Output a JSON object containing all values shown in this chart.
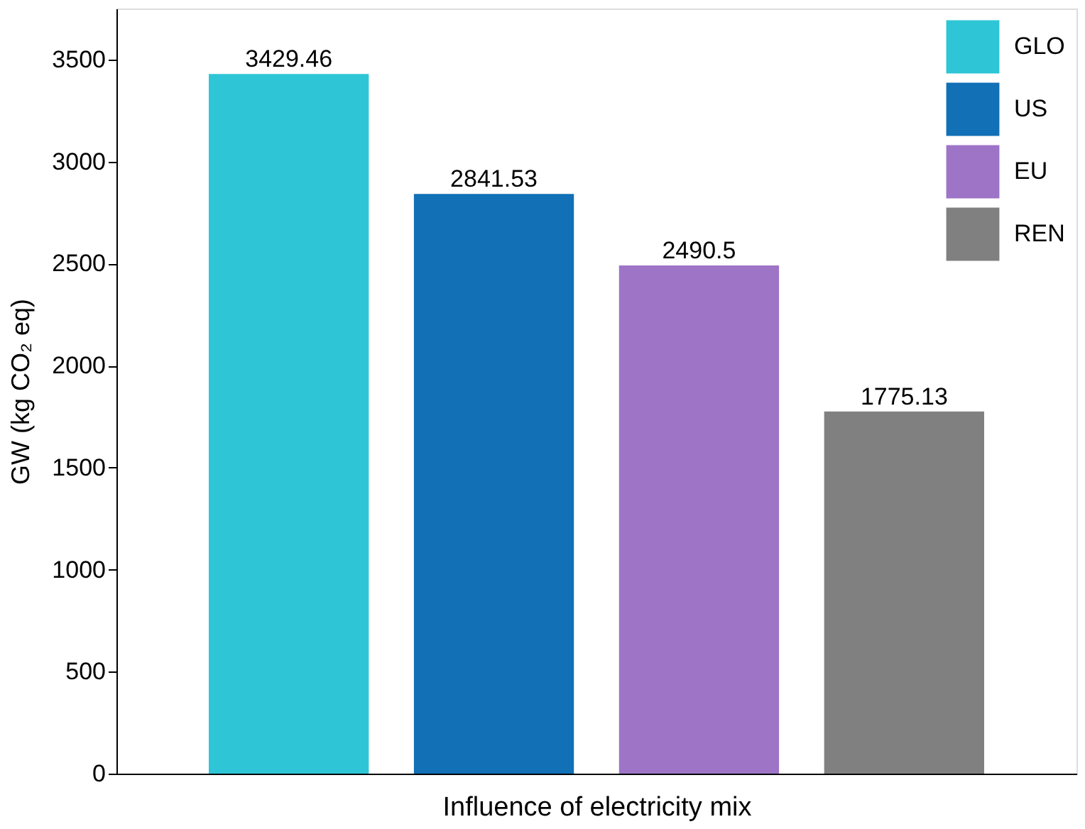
{
  "chart_data": {
    "type": "bar",
    "xlabel": "Influence of electricity mix",
    "ylabel": "GW (kg CO₂ eq)",
    "categories": [
      null,
      null,
      null,
      null
    ],
    "series": [
      {
        "name": "GLO",
        "color": "#2ec6d6",
        "values": [
          3429.46,
          null,
          null,
          null
        ]
      },
      {
        "name": "US",
        "color": "#1170b6",
        "values": [
          null,
          2841.53,
          null,
          null
        ]
      },
      {
        "name": "EU",
        "color": "#9e74c7",
        "values": [
          null,
          null,
          2490.5,
          null
        ]
      },
      {
        "name": "REN",
        "color": "#808080",
        "values": [
          null,
          null,
          null,
          1775.13
        ]
      }
    ],
    "ylim": [
      0,
      3750
    ],
    "yticks": [
      0,
      500,
      1000,
      1500,
      2000,
      2500,
      3000,
      3500
    ],
    "data_labels": true,
    "legend": "top right",
    "grid": false,
    "tick_labels": "y"
  }
}
